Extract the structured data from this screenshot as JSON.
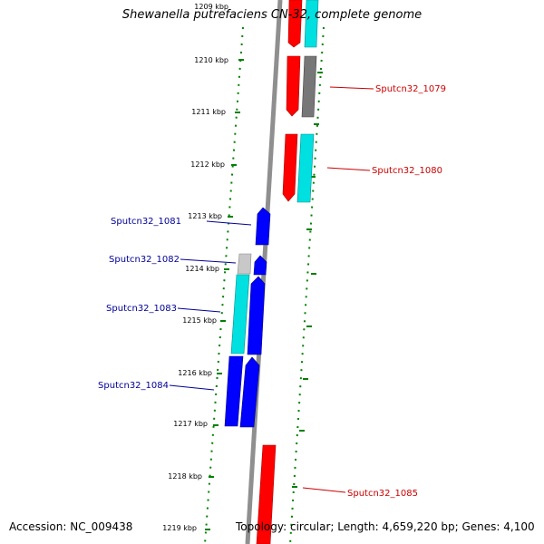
{
  "title": "Shewanella putrefaciens CN-32, complete genome",
  "accession_text": "Accession: NC_009438",
  "summary_text": "Topology: circular; Length: 4,659,220 bp; Genes: 4,100",
  "colors": {
    "forward_gene": "#ff0000",
    "reverse_gene": "#0000ff",
    "cyan_feature": "#00e0e0",
    "gray_feature": "#808080",
    "light_gray_feature": "#c0c0c0",
    "genome_line": "#909090",
    "tick": "#008000",
    "label_forward": "#cc0000",
    "label_reverse": "#000099"
  },
  "ticks": [
    "1209 kbp",
    "1210 kbp",
    "1211 kbp",
    "1212 kbp",
    "1213 kbp",
    "1214 kbp",
    "1215 kbp",
    "1216 kbp",
    "1217 kbp",
    "1218 kbp",
    "1219 kbp"
  ],
  "gene_labels": {
    "g1079": "Sputcn32_1079",
    "g1080": "Sputcn32_1080",
    "g1081": "Sputcn32_1081",
    "g1082": "Sputcn32_1082",
    "g1083": "Sputcn32_1083",
    "g1084": "Sputcn32_1084",
    "g1085": "Sputcn32_1085"
  }
}
